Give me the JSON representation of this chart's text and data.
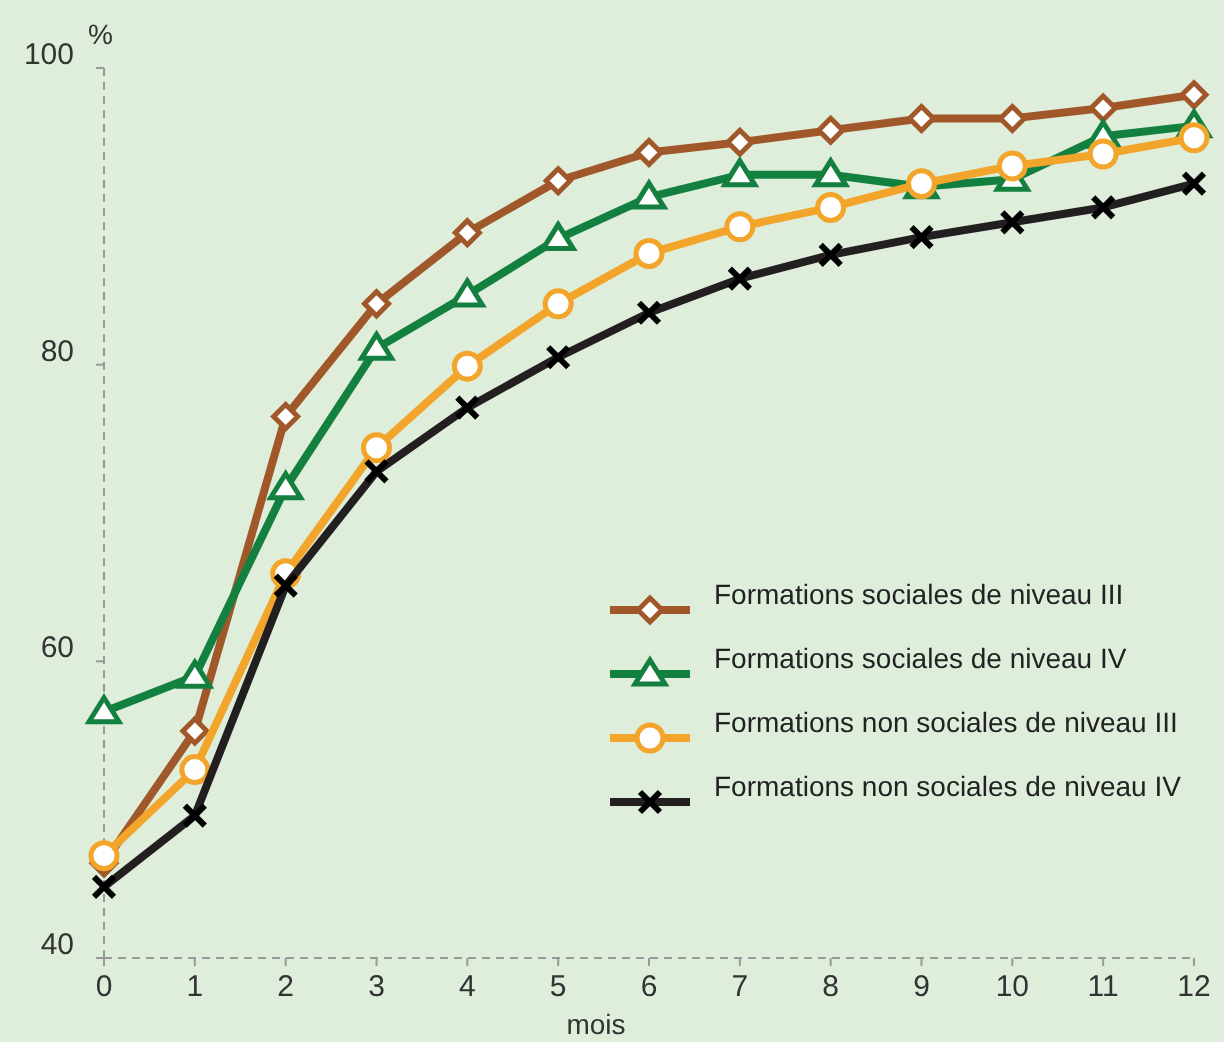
{
  "chart_data": {
    "type": "line",
    "xlabel": "mois",
    "ylabel": "%",
    "x": [
      0,
      1,
      2,
      3,
      4,
      5,
      6,
      7,
      8,
      9,
      10,
      11,
      12
    ],
    "xlim": [
      0,
      12
    ],
    "xticks": [
      0,
      1,
      2,
      3,
      4,
      5,
      6,
      7,
      8,
      9,
      10,
      11,
      12
    ],
    "ylim": [
      40,
      100
    ],
    "yticks": [
      40,
      60,
      80,
      100
    ],
    "legend": "bottom right",
    "series": [
      {
        "name": "Formations sociales de niveau III",
        "color": "#a0582a",
        "marker": "diamond",
        "values": [
          46.4,
          55.3,
          76.5,
          84.1,
          88.9,
          92.4,
          94.3,
          95.0,
          95.8,
          96.6,
          96.6,
          97.3,
          98.2
        ]
      },
      {
        "name": "Formations sociales de niveau IV",
        "color": "#138040",
        "marker": "triangle",
        "values": [
          56.6,
          59.0,
          71.7,
          81.1,
          84.7,
          88.5,
          91.3,
          92.8,
          92.8,
          92.0,
          92.5,
          95.4,
          96.1
        ]
      },
      {
        "name": "Formations non sociales de niveau III",
        "color": "#f2a52a",
        "marker": "circle",
        "values": [
          46.9,
          52.7,
          65.9,
          74.4,
          79.9,
          84.1,
          87.5,
          89.3,
          90.6,
          92.2,
          93.4,
          94.2,
          95.3
        ]
      },
      {
        "name": "Formations non sociales de niveau IV",
        "color": "#231f20",
        "marker": "cross",
        "values": [
          44.8,
          49.6,
          65.1,
          72.8,
          77.1,
          80.5,
          83.5,
          85.8,
          87.4,
          88.6,
          89.6,
          90.6,
          92.2
        ]
      }
    ]
  }
}
